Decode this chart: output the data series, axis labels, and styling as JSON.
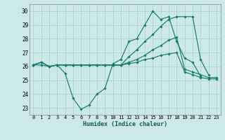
{
  "xlabel": "Humidex (Indice chaleur)",
  "ylabel": "",
  "xlim": [
    -0.5,
    23.5
  ],
  "ylim": [
    22.5,
    30.5
  ],
  "yticks": [
    23,
    24,
    25,
    26,
    27,
    28,
    29,
    30
  ],
  "xticks": [
    0,
    1,
    2,
    3,
    4,
    5,
    6,
    7,
    8,
    9,
    10,
    11,
    12,
    13,
    14,
    15,
    16,
    17,
    18,
    19,
    20,
    21,
    22,
    23
  ],
  "bg_color": "#cce9e8",
  "grid_color": "#aad4d2",
  "line_color": "#1a7a6e",
  "lines": [
    {
      "x": [
        0,
        1,
        2,
        3,
        4,
        5,
        6,
        7,
        8,
        9,
        10,
        11,
        12,
        13,
        14,
        15,
        16,
        17,
        18,
        19,
        20,
        21
      ],
      "y": [
        26.1,
        26.3,
        26.0,
        26.1,
        25.5,
        23.7,
        22.9,
        23.2,
        24.0,
        24.4,
        26.2,
        26.5,
        27.8,
        28.0,
        29.0,
        30.0,
        29.4,
        29.6,
        27.8,
        26.6,
        26.3,
        25.3
      ]
    },
    {
      "x": [
        0,
        1,
        2,
        3,
        4,
        5,
        6,
        7,
        8,
        9,
        10,
        11,
        12,
        13,
        14,
        15,
        16,
        17,
        18,
        19,
        20,
        21,
        22
      ],
      "y": [
        26.1,
        26.3,
        26.0,
        26.1,
        26.1,
        26.1,
        26.1,
        26.1,
        26.1,
        26.1,
        26.1,
        26.1,
        26.7,
        27.2,
        27.8,
        28.3,
        28.9,
        29.4,
        29.6,
        29.6,
        29.6,
        26.5,
        25.4
      ]
    },
    {
      "x": [
        0,
        1,
        2,
        3,
        4,
        5,
        6,
        7,
        8,
        9,
        10,
        11,
        12,
        13,
        14,
        15,
        16,
        17,
        18,
        19,
        20,
        21,
        22,
        23
      ],
      "y": [
        26.1,
        26.3,
        26.0,
        26.1,
        26.1,
        26.1,
        26.1,
        26.1,
        26.1,
        26.1,
        26.1,
        26.1,
        26.3,
        26.5,
        26.8,
        27.2,
        27.5,
        27.9,
        28.1,
        25.8,
        25.6,
        25.4,
        25.2,
        25.2
      ]
    },
    {
      "x": [
        0,
        1,
        2,
        3,
        4,
        5,
        6,
        7,
        8,
        9,
        10,
        11,
        12,
        13,
        14,
        15,
        16,
        17,
        18,
        19,
        20,
        21,
        22,
        23
      ],
      "y": [
        26.1,
        26.1,
        26.0,
        26.1,
        26.1,
        26.1,
        26.1,
        26.1,
        26.1,
        26.1,
        26.1,
        26.1,
        26.2,
        26.3,
        26.5,
        26.6,
        26.8,
        26.9,
        27.0,
        25.6,
        25.4,
        25.2,
        25.1,
        25.1
      ]
    }
  ]
}
